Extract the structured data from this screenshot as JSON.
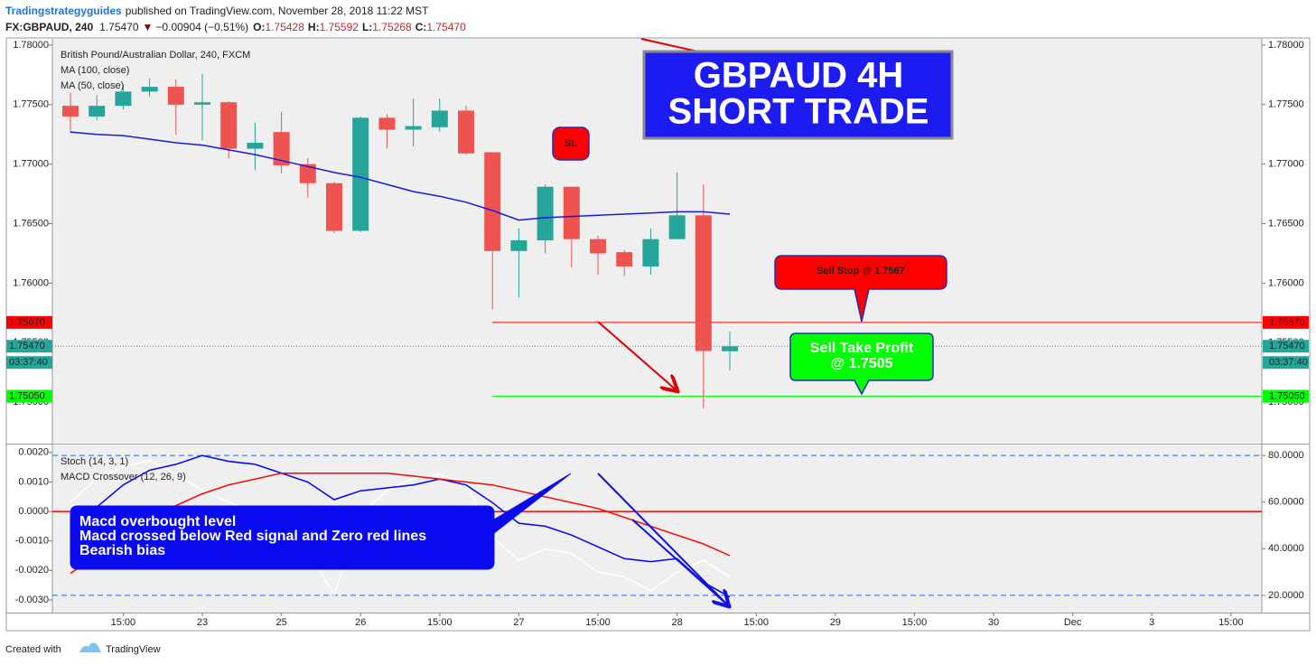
{
  "header": {
    "author": "Tradingstrategyguides",
    "published": "published on TradingView.com, November 28, 2018 11:22 MST",
    "symbol": "FX:GBPAUD, 240",
    "last": "1.75470",
    "arrow": "▼",
    "change": "−0.00904 (−0.51%)",
    "ohlc": [
      {
        "key": "O:",
        "value": "1.75428"
      },
      {
        "key": "H:",
        "value": "1.75592"
      },
      {
        "key": "L:",
        "value": "1.75268"
      },
      {
        "key": "C:",
        "value": "1.75470"
      }
    ]
  },
  "chart_data": [
    {
      "type": "candlestick",
      "title": "British Pound/Australian Dollar, 240, FXCM",
      "studies": [
        "MA (100, close)",
        "MA (50, close)"
      ],
      "open": [
        1.7749,
        1.774,
        1.7749,
        1.7761,
        1.7765,
        1.775,
        1.7752,
        1.7713,
        1.7727,
        1.77,
        1.7684,
        1.7644,
        1.7739,
        1.7729,
        1.7731,
        1.7745,
        1.771,
        1.7627,
        1.7636,
        1.7681,
        1.7637,
        1.7626,
        1.7614,
        1.7637,
        1.7657,
        1.75428
      ],
      "high": [
        1.776,
        1.7758,
        1.7767,
        1.7772,
        1.7771,
        1.7776,
        1.7753,
        1.7735,
        1.7744,
        1.7705,
        1.7685,
        1.774,
        1.7742,
        1.7755,
        1.7755,
        1.7749,
        1.771,
        1.7646,
        1.7683,
        1.7681,
        1.764,
        1.7628,
        1.7646,
        1.7693,
        1.7683,
        1.75592
      ],
      "low": [
        1.7726,
        1.7737,
        1.7746,
        1.7757,
        1.7725,
        1.772,
        1.7705,
        1.7695,
        1.7692,
        1.7672,
        1.7642,
        1.7643,
        1.7713,
        1.7715,
        1.7727,
        1.7708,
        1.7578,
        1.7588,
        1.7625,
        1.7613,
        1.7607,
        1.7606,
        1.7607,
        1.7637,
        1.7495,
        1.75268
      ],
      "close": [
        1.774,
        1.7749,
        1.7761,
        1.7765,
        1.775,
        1.7752,
        1.7713,
        1.7718,
        1.7699,
        1.7684,
        1.7644,
        1.7739,
        1.7729,
        1.7732,
        1.7745,
        1.7709,
        1.7627,
        1.7636,
        1.7681,
        1.7637,
        1.7625,
        1.7614,
        1.7637,
        1.7657,
        1.7543,
        1.7547
      ],
      "up_color": "#26a69a",
      "down_color": "#ef5350",
      "ma": {
        "color": "#1a1ad8",
        "values": [
          1.7727,
          1.7725,
          1.7724,
          1.7721,
          1.7718,
          1.7716,
          1.7712,
          1.7708,
          1.7703,
          1.7698,
          1.7693,
          1.7689,
          1.7683,
          1.7677,
          1.7673,
          1.7668,
          1.7661,
          1.7653,
          1.7655,
          1.7656,
          1.7657,
          1.7658,
          1.7659,
          1.766,
          1.766,
          1.7658
        ]
      },
      "ylim": [
        1.74659,
        1.78053
      ],
      "yticks": [
        {
          "value": 1.78,
          "label": "1.78000"
        },
        {
          "value": 1.775,
          "label": "1.77500"
        },
        {
          "value": 1.77,
          "label": "1.77000"
        },
        {
          "value": 1.765,
          "label": "1.76500"
        },
        {
          "value": 1.76,
          "label": "1.76000"
        },
        {
          "value": 1.755,
          "label": "1.75500"
        },
        {
          "value": 1.75,
          "label": "1.75000"
        }
      ],
      "xlim": [
        -0.685,
        45.17
      ],
      "xticks": [
        {
          "value": 2,
          "label": "15:00"
        },
        {
          "value": 5,
          "label": "23"
        },
        {
          "value": 8,
          "label": "25"
        },
        {
          "value": 11,
          "label": "26"
        },
        {
          "value": 14,
          "label": "15:00"
        },
        {
          "value": 17,
          "label": "27"
        },
        {
          "value": 20,
          "label": "15:00"
        },
        {
          "value": 23,
          "label": "28"
        },
        {
          "value": 26,
          "label": "15:00"
        },
        {
          "value": 29,
          "label": "29"
        },
        {
          "value": 32,
          "label": "15:00"
        },
        {
          "value": 35,
          "label": "30"
        },
        {
          "value": 38,
          "label": "Dec"
        },
        {
          "value": 41,
          "label": "3"
        },
        {
          "value": 44,
          "label": "15:00"
        }
      ],
      "levels": [
        {
          "value": 1.7567,
          "label": "1.75670",
          "color": "#ff0000",
          "style": "solid"
        },
        {
          "value": 1.7547,
          "label": "1.75470",
          "color": "#26a69a",
          "style": "dotted"
        },
        {
          "value": 1.7505,
          "label": "1.75050",
          "color": "#00ff00",
          "style": "solid"
        }
      ],
      "countdown": "03:37:40",
      "annotations": {
        "title": [
          "GBPAUD 4H",
          "SHORT TRADE"
        ],
        "sl": "SL",
        "sell_stop": "Sell Stop @ 1.7567",
        "take_profit": [
          "Sell Take Profit",
          "@ 1.7505"
        ]
      }
    },
    {
      "type": "line",
      "studies": [
        "Stoch (14, 3, 1)",
        "MACD Crossover (12, 26, 9)"
      ],
      "series": [
        {
          "color": "#ffffff",
          "axis": "y2",
          "values": [
            60,
            70,
            75,
            78,
            72,
            65,
            60,
            55,
            50,
            40,
            20,
            55,
            65,
            70,
            72,
            68,
            45,
            35,
            40,
            38,
            30,
            28,
            22,
            30,
            35,
            28
          ]
        },
        {
          "color": "#0000ff",
          "values": [
            -0.0006,
            0.00015,
            0.0009,
            0.0014,
            0.0016,
            0.0019,
            0.0017,
            0.0016,
            0.0013,
            0.001,
            0.0004,
            0.0007,
            0.0008,
            0.0009,
            0.0011,
            0.0009,
            0.0003,
            -0.0004,
            -0.0005,
            -0.0008,
            -0.0012,
            -0.0016,
            -0.0017,
            -0.0016,
            -0.0024,
            -0.0029
          ]
        },
        {
          "color": "#ff0000",
          "values": [
            -0.0021,
            -0.0015,
            -0.0009,
            -0.0003,
            0.0002,
            0.0006,
            0.0009,
            0.0011,
            0.0013,
            0.0013,
            0.0013,
            0.0013,
            0.0013,
            0.0012,
            0.0011,
            0.001,
            0.0009,
            0.0007,
            0.0005,
            0.0003,
            0.0001,
            -0.0002,
            -0.0005,
            -0.0008,
            -0.0011,
            -0.0015
          ]
        }
      ],
      "ylim": [
        -0.00343,
        0.00224
      ],
      "yticks": [
        {
          "value": 0.002,
          "label": "0.0020"
        },
        {
          "value": 0.001,
          "label": "0.0010"
        },
        {
          "value": 0,
          "label": "0.0000"
        },
        {
          "value": -0.001,
          "label": "-0.0010"
        },
        {
          "value": -0.002,
          "label": "-0.0020"
        },
        {
          "value": -0.003,
          "label": "-0.0030"
        }
      ],
      "y2lim": [
        12.6,
        84.3
      ],
      "y2ticks": [
        {
          "value": 80,
          "label": "80.0000"
        },
        {
          "value": 60,
          "label": "60.0000"
        },
        {
          "value": 40,
          "label": "40.0000"
        },
        {
          "value": 20,
          "label": "20.0000"
        }
      ],
      "levels": [
        {
          "value": 0,
          "color": "#ff0000"
        }
      ],
      "y2_levels": [
        {
          "value": 80,
          "color": "#4d7cff"
        },
        {
          "value": 20,
          "color": "#4d7cff"
        }
      ],
      "annotation": [
        "Macd overbought level",
        "Macd crossed below Red signal and Zero red lines",
        "Bearish bias"
      ]
    }
  ],
  "footer": {
    "text": "Created with",
    "brand": "TradingView"
  }
}
